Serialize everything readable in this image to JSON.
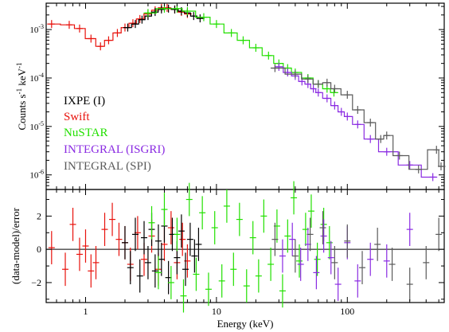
{
  "chart_data": [
    {
      "type": "scatter",
      "panel": "spectrum",
      "xscale": "log",
      "yscale": "log",
      "xlim": [
        0.5,
        550
      ],
      "ylim": [
        5e-07,
        0.0035
      ],
      "ylabel": "Counts s-1 keV-1",
      "ylabel_main": "Counts s",
      "ylabel_sup1": "-1",
      "ylabel_mid": " keV",
      "ylabel_sup2": "-1",
      "ytick_labels": [
        {
          "value": 1e-06,
          "base": "10",
          "exp": "-6"
        },
        {
          "value": 1e-05,
          "base": "10",
          "exp": "-5"
        },
        {
          "value": 0.0001,
          "base": "10",
          "exp": "-4"
        },
        {
          "value": 0.001,
          "base": "10",
          "exp": "-3"
        }
      ],
      "legend_position": "left",
      "legend": [
        {
          "label": "IXPE (I)",
          "color": "#000000"
        },
        {
          "label": "Swift",
          "color": "#e8120c"
        },
        {
          "label": "NuSTAR",
          "color": "#22e000"
        },
        {
          "label": "INTEGRAL (ISGRI)",
          "color": "#8a2be2"
        },
        {
          "label": "INTEGRAL (SPI)",
          "color": "#5a5a5a"
        }
      ],
      "series": [
        {
          "name": "Swift",
          "color": "#e8120c",
          "x": [
            0.55,
            0.75,
            0.9,
            1.1,
            1.3,
            1.5,
            1.75,
            2.0,
            2.3,
            2.6,
            3.0,
            3.4,
            3.8,
            4.2,
            4.8,
            5.4,
            6.0
          ],
          "y": [
            0.0013,
            0.00125,
            0.00105,
            0.00065,
            0.00045,
            0.0006,
            0.00085,
            0.0011,
            0.00135,
            0.00165,
            0.0021,
            0.0025,
            0.0028,
            0.0028,
            0.0026,
            0.0023,
            0.0021
          ]
        },
        {
          "name": "IXPE (I)",
          "color": "#000000",
          "x": [
            2.1,
            2.4,
            2.7,
            3.0,
            3.4,
            3.8,
            4.3,
            4.8,
            5.4,
            6.0,
            6.7,
            7.5
          ],
          "y": [
            0.0011,
            0.0013,
            0.0016,
            0.0019,
            0.0023,
            0.0026,
            0.0027,
            0.0026,
            0.0024,
            0.0022,
            0.0019,
            0.0017
          ]
        },
        {
          "name": "NuSTAR",
          "color": "#22e000",
          "x": [
            3.0,
            4.0,
            5.0,
            6.0,
            8.0,
            10,
            13,
            16,
            20,
            25,
            30,
            35,
            40,
            50,
            60,
            70,
            79
          ],
          "y": [
            0.0022,
            0.0027,
            0.0027,
            0.0024,
            0.0018,
            0.0013,
            0.00085,
            0.0006,
            0.00042,
            0.00029,
            0.0002,
            0.00016,
            0.00013,
            0.0001,
            7.5e-05,
            6e-05,
            5e-05
          ]
        },
        {
          "name": "INTEGRAL (ISGRI)",
          "color": "#8a2be2",
          "x": [
            30,
            35,
            40,
            45,
            50,
            55,
            60,
            70,
            80,
            90,
            100,
            120,
            150,
            200,
            300,
            450
          ],
          "y": [
            0.00017,
            0.00013,
            0.00011,
            8.5e-05,
            7.5e-05,
            6e-05,
            5e-05,
            3.8e-05,
            2.7e-05,
            2e-05,
            1.6e-05,
            1.1e-05,
            5.5e-06,
            3e-06,
            1.6e-06,
            9e-07
          ]
        },
        {
          "name": "INTEGRAL (SPI)",
          "color": "#5a5a5a",
          "x": [
            28,
            40,
            50,
            60,
            70,
            80,
            100,
            120,
            150,
            180,
            200,
            250,
            350,
            480,
            520
          ],
          "y": [
            0.00016,
            0.00012,
            9.5e-05,
            7.5e-05,
            8e-05,
            6e-05,
            4.5e-05,
            2.2e-05,
            1.2e-05,
            5.5e-06,
            6.5e-06,
            2.5e-06,
            1.3e-06,
            3.3e-06,
            1.5e-06
          ]
        }
      ]
    },
    {
      "type": "scatter",
      "panel": "residuals",
      "xscale": "log",
      "xlim": [
        0.5,
        550
      ],
      "ylim": [
        -3.2,
        3.6
      ],
      "xlabel": "Energy (keV)",
      "ylabel": "(data-model)/error",
      "xtick_labels": [
        {
          "value": 1,
          "label": "1"
        },
        {
          "value": 10,
          "label": "10"
        },
        {
          "value": 100,
          "label": "100"
        }
      ],
      "ytick_labels": [
        {
          "value": -2,
          "label": "−2"
        },
        {
          "value": 0,
          "label": "0"
        },
        {
          "value": 2,
          "label": "2"
        }
      ],
      "series": [
        {
          "name": "Swift",
          "color": "#e8120c",
          "x": [
            0.55,
            0.7,
            0.8,
            0.9,
            1.0,
            1.1,
            1.2,
            1.4,
            1.6,
            1.8,
            2.0,
            2.2,
            2.5,
            2.8,
            3.2,
            3.6,
            4.0,
            4.5,
            5.0,
            5.5,
            6.0
          ],
          "y": [
            0.1,
            -1.2,
            1.5,
            -0.3,
            0.2,
            -1.3,
            -0.8,
            1.2,
            1.8,
            0.6,
            0.4,
            -0.9,
            1.0,
            -0.6,
            0.8,
            -1.2,
            0.3,
            1.3,
            -0.8,
            0.6,
            -0.7
          ]
        },
        {
          "name": "IXPE (I)",
          "color": "#000000",
          "x": [
            2.0,
            2.2,
            2.4,
            2.6,
            2.8,
            3.0,
            3.2,
            3.4,
            3.6,
            3.8,
            4.0,
            4.3,
            4.6,
            5.0,
            5.4,
            5.8,
            6.3,
            6.8,
            7.3
          ],
          "y": [
            0.4,
            -1.1,
            0.9,
            -1.6,
            0.7,
            -0.8,
            1.2,
            -1.3,
            0.5,
            -0.6,
            1.4,
            -1.7,
            0.9,
            -0.5,
            1.1,
            -1.2,
            0.6,
            -0.4,
            0.3
          ]
        },
        {
          "name": "NuSTAR",
          "color": "#22e000",
          "x": [
            3.2,
            3.6,
            4.0,
            4.5,
            5.0,
            5.6,
            6.2,
            7.0,
            7.8,
            8.7,
            9.7,
            11,
            12,
            13.5,
            15,
            17,
            19,
            21,
            23,
            26,
            29,
            32,
            35,
            39,
            43,
            48,
            53,
            59,
            66,
            73
          ],
          "y": [
            1.6,
            -1.4,
            2.4,
            -2.0,
            0.9,
            -2.8,
            3.0,
            -1.5,
            2.2,
            -2.4,
            1.3,
            -1.9,
            2.6,
            -1.2,
            1.8,
            -2.2,
            0.7,
            -1.6,
            2.0,
            -0.9,
            1.4,
            -2.5,
            0.8,
            3.1,
            -0.7,
            1.2,
            2.3,
            -0.6,
            1.5,
            0.4
          ]
        },
        {
          "name": "INTEGRAL (ISGRI)",
          "color": "#8a2be2",
          "x": [
            32,
            38,
            44,
            50,
            58,
            66,
            75,
            85,
            100,
            120,
            150,
            200,
            300
          ],
          "y": [
            -0.4,
            0.6,
            -0.9,
            0.3,
            -1.4,
            0.8,
            -0.5,
            -2.1,
            0.4,
            -1.9,
            -0.6,
            -0.7,
            1.2
          ]
        },
        {
          "name": "INTEGRAL (SPI)",
          "color": "#5a5a5a",
          "x": [
            28,
            40,
            52,
            65,
            80,
            100,
            130,
            170,
            220,
            300,
            400,
            500
          ],
          "y": [
            0.6,
            -0.4,
            0.9,
            1.3,
            -0.8,
            0.5,
            -1.1,
            0.3,
            -0.9,
            -2.1,
            -0.8,
            0.9
          ]
        }
      ]
    }
  ]
}
